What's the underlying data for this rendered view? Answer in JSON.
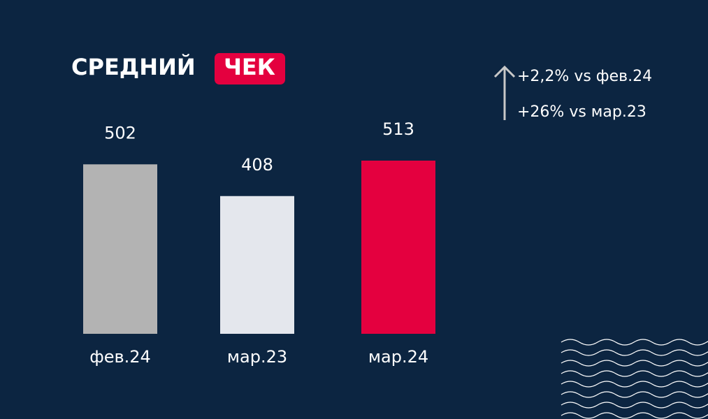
{
  "chart_data": {
    "type": "bar",
    "title": "СРЕДНИЙ",
    "title_highlight": "ЧЕК",
    "categories": [
      "фев.24",
      "мар.23",
      "мар.24"
    ],
    "values": [
      502,
      408,
      513
    ],
    "colors": [
      "#b3b3b3",
      "#e4e7ed",
      "#e4003f"
    ],
    "annotations": [
      "+2,2% vs фев.24",
      "+26%  vs мар.23"
    ]
  }
}
